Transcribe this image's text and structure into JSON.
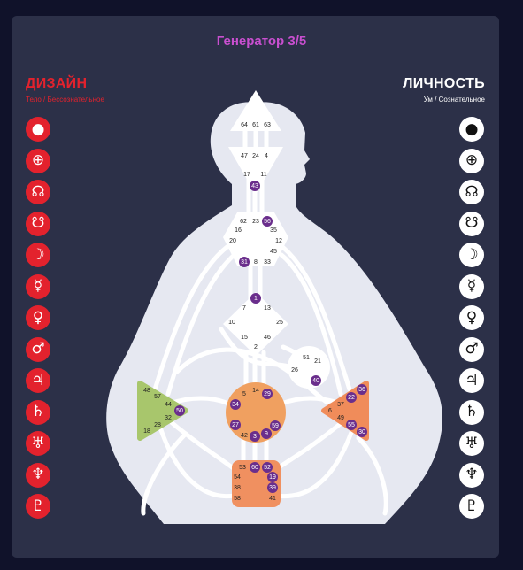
{
  "title": "Генератор 3/5",
  "design": {
    "title": "ДИЗАЙН",
    "subtitle": "Тело / Бессознательное"
  },
  "personality": {
    "title": "ЛИЧНОСТЬ",
    "subtitle": "Ум / Сознательное"
  },
  "planets": [
    {
      "name": "sun-icon",
      "glyph": "●"
    },
    {
      "name": "earth-icon",
      "glyph": "⊕"
    },
    {
      "name": "north-node-icon",
      "glyph": "☊"
    },
    {
      "name": "south-node-icon",
      "glyph": "☋"
    },
    {
      "name": "moon-icon",
      "glyph": "☽"
    },
    {
      "name": "mercury-icon",
      "glyph": "☿"
    },
    {
      "name": "venus-icon",
      "glyph": "♀"
    },
    {
      "name": "mars-icon",
      "glyph": "♂"
    },
    {
      "name": "jupiter-icon",
      "glyph": "♃"
    },
    {
      "name": "saturn-icon",
      "glyph": "♄"
    },
    {
      "name": "uranus-icon",
      "glyph": "♅"
    },
    {
      "name": "neptune-icon",
      "glyph": "♆"
    },
    {
      "name": "pluto-icon",
      "glyph": "♇"
    }
  ],
  "colors": {
    "design": "#e3222d",
    "personality": "#ffffff",
    "accent": "#c94fd0",
    "active_gate": "#6a2e8c",
    "spleen": "#a8c66c",
    "sacral": "#f0a060",
    "solar_plexus": "#f08c5a",
    "root": "#f09060"
  },
  "centers": {
    "head": {
      "gates": [
        "64",
        "61",
        "63"
      ]
    },
    "ajna": {
      "gates": [
        "47",
        "24",
        "4",
        "17",
        "11",
        "43"
      ],
      "active": [
        "43"
      ]
    },
    "throat": {
      "gates": [
        "62",
        "23",
        "56",
        "16",
        "35",
        "20",
        "12",
        "45",
        "31",
        "8",
        "33"
      ],
      "active": [
        "56",
        "31"
      ]
    },
    "g": {
      "gates": [
        "1",
        "7",
        "13",
        "10",
        "25",
        "15",
        "46",
        "2"
      ],
      "active": [
        "1"
      ]
    },
    "ego": {
      "gates": [
        "51",
        "21",
        "26",
        "40"
      ],
      "active": [
        "40"
      ]
    },
    "spleen": {
      "gates": [
        "48",
        "57",
        "44",
        "50",
        "32",
        "28",
        "18"
      ],
      "active": [
        "50"
      ]
    },
    "sacral": {
      "gates": [
        "5",
        "14",
        "29",
        "34",
        "27",
        "59",
        "42",
        "3",
        "9"
      ],
      "active": [
        "29",
        "34",
        "27",
        "59",
        "3",
        "9"
      ]
    },
    "solar_plexus": {
      "gates": [
        "36",
        "22",
        "37",
        "6",
        "49",
        "55",
        "30"
      ],
      "active": [
        "36",
        "22",
        "55",
        "30"
      ]
    },
    "root": {
      "gates": [
        "53",
        "60",
        "52",
        "54",
        "19",
        "38",
        "39",
        "58",
        "41"
      ],
      "active": [
        "60",
        "52",
        "19",
        "39"
      ]
    }
  }
}
